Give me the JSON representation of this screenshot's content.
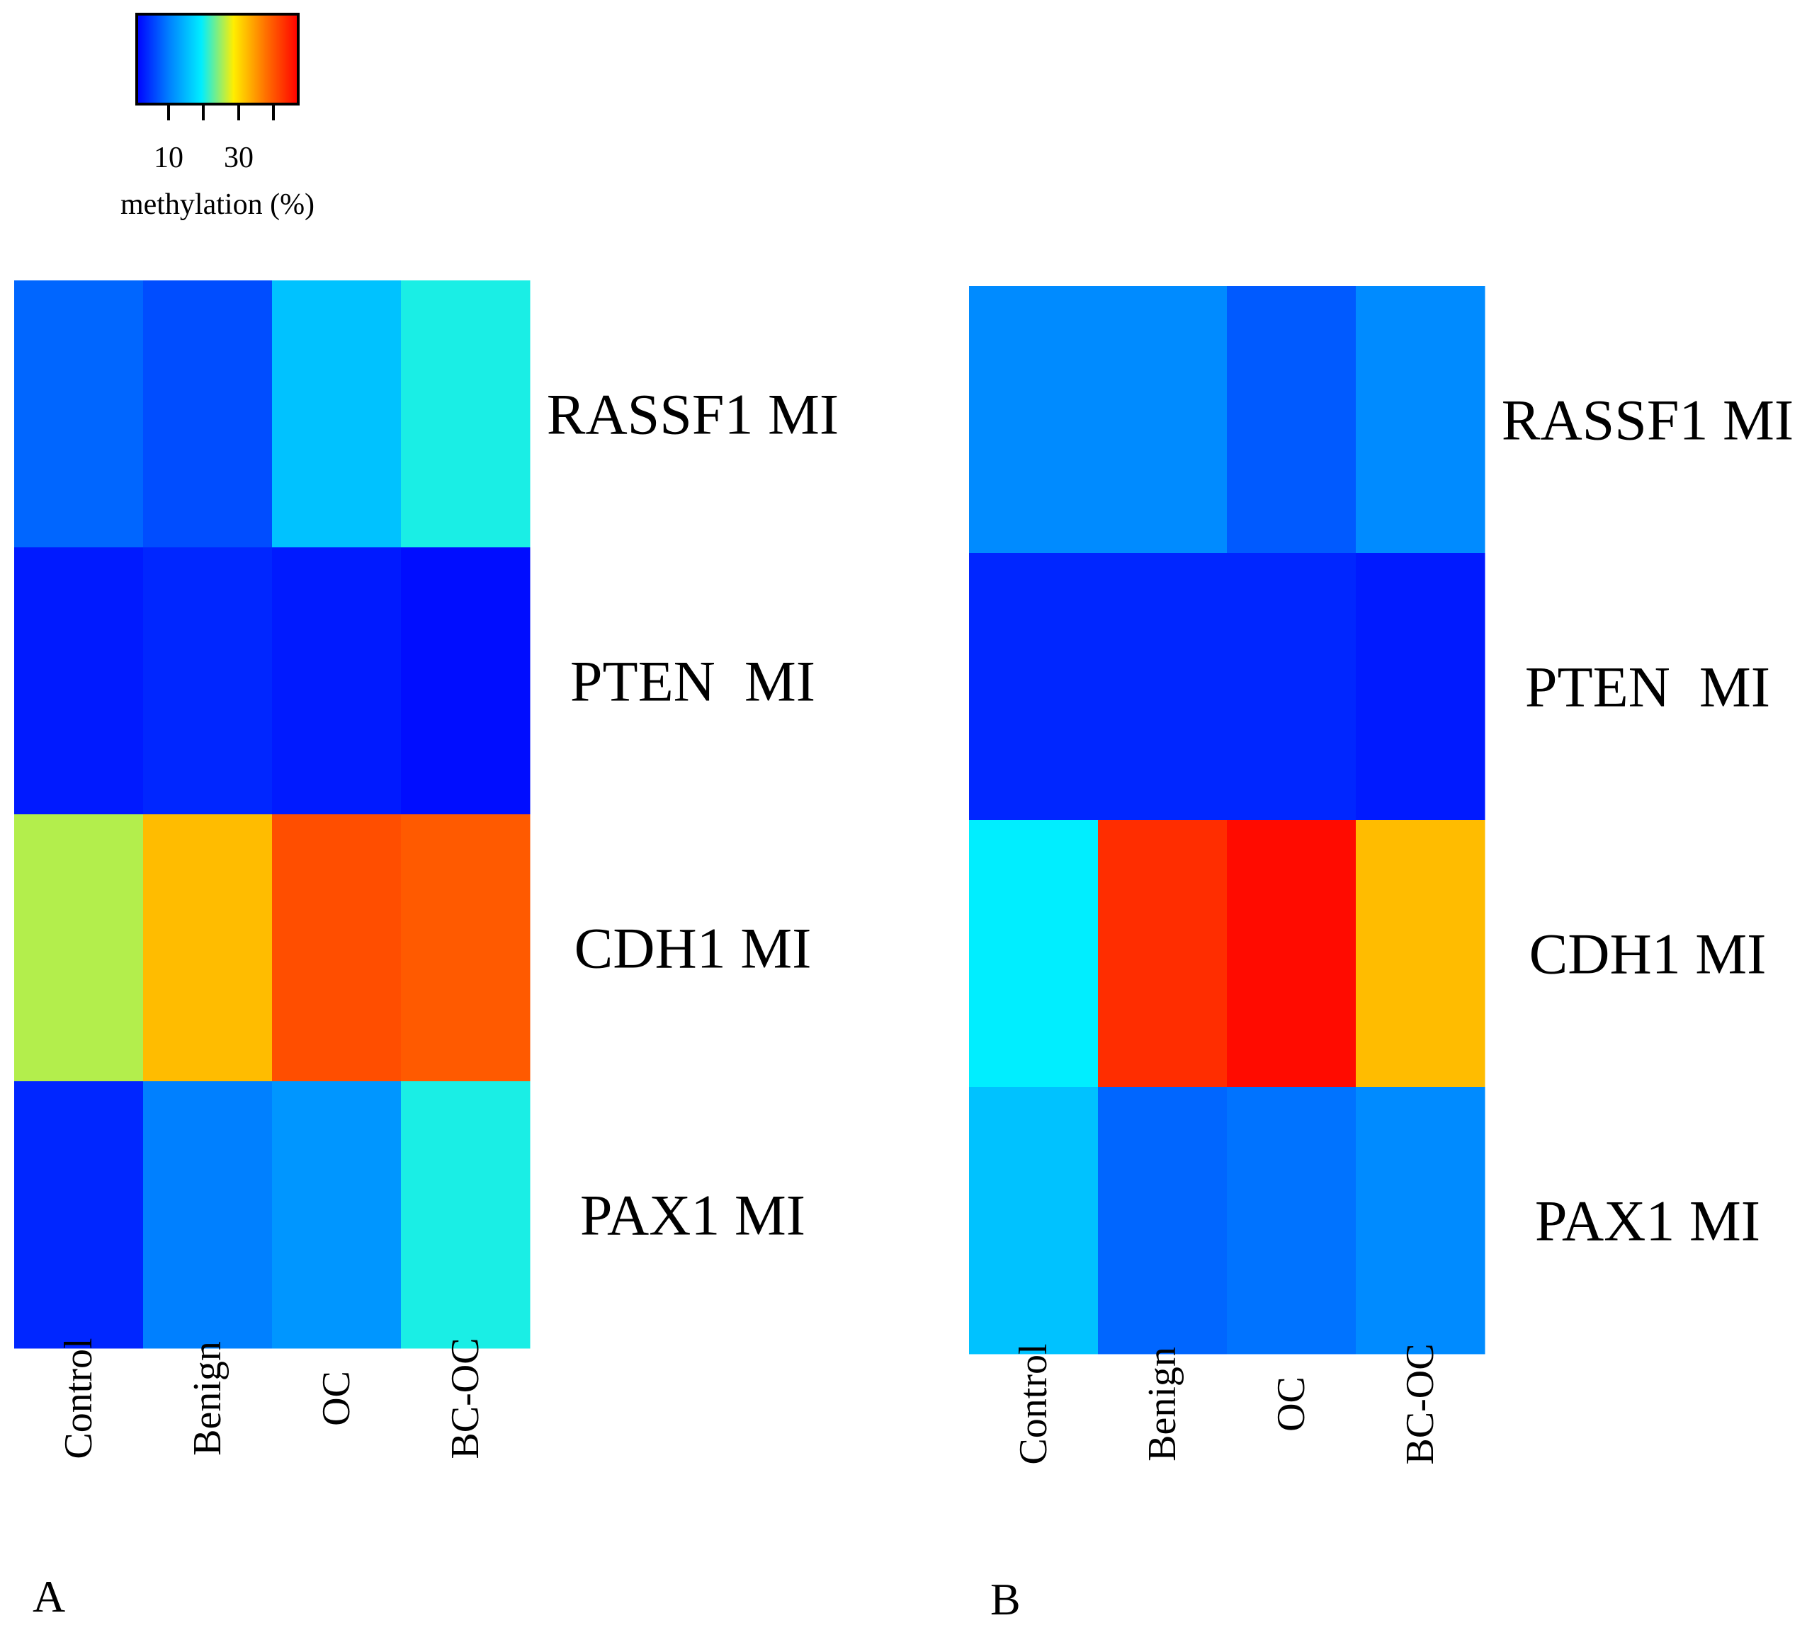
{
  "chart_data": [
    {
      "type": "heatmap",
      "panel": "A",
      "rows": [
        "RASSF1 MI",
        "PTEN  MI",
        "CDH1 MI",
        "PAX1 MI"
      ],
      "columns": [
        "Control",
        "Benign",
        "OC",
        "BC-OC"
      ],
      "values": [
        [
          8,
          6,
          16,
          21
        ],
        [
          2,
          3,
          2,
          1
        ],
        [
          27,
          34,
          43,
          42
        ],
        [
          3,
          10,
          12,
          21
        ]
      ],
      "value_label": "methylation (%)"
    },
    {
      "type": "heatmap",
      "panel": "B",
      "rows": [
        "RASSF1 MI",
        "PTEN  MI",
        "CDH1 MI",
        "PAX1 MI"
      ],
      "columns": [
        "Control",
        "Benign",
        "OC",
        "BC-OC"
      ],
      "values": [
        [
          11,
          11,
          7,
          11
        ],
        [
          3,
          3,
          3,
          2
        ],
        [
          20,
          46,
          49,
          34
        ],
        [
          16,
          8,
          9,
          11
        ]
      ],
      "value_label": "methylation (%)"
    }
  ],
  "legend": {
    "title": "methylation (%)",
    "tick_labels": [
      "10",
      "30"
    ],
    "range": [
      0,
      50
    ],
    "colors": [
      "#0000ff",
      "#0080ff",
      "#00eeff",
      "#ffee00",
      "#ff7000",
      "#ff0000"
    ]
  },
  "panels": {
    "a_label": "A",
    "b_label": "B"
  }
}
